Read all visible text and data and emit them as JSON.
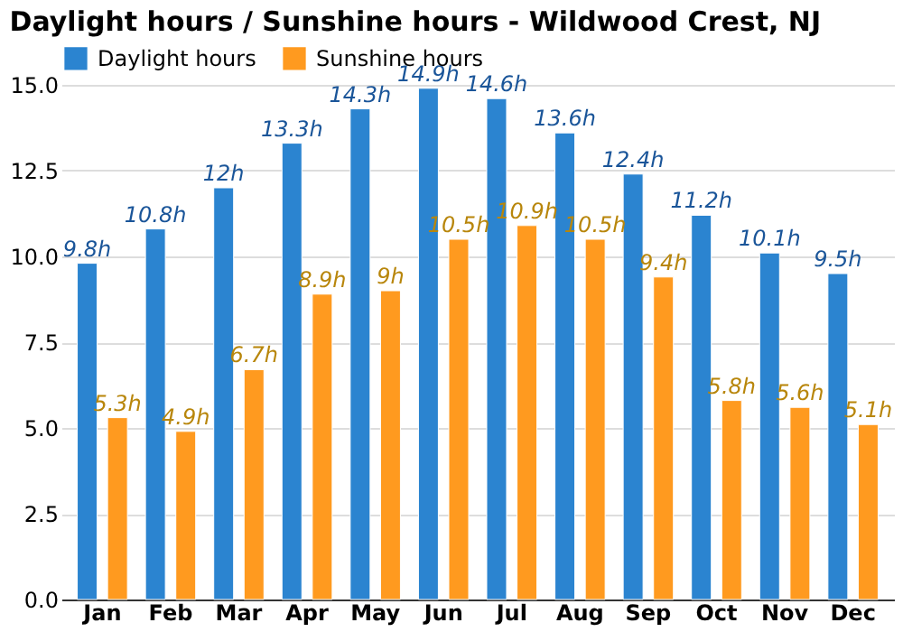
{
  "chart_data": {
    "type": "bar",
    "title": "Daylight hours / Sunshine hours - Wildwood Crest, NJ",
    "categories": [
      "Jan",
      "Feb",
      "Mar",
      "Apr",
      "May",
      "Jun",
      "Jul",
      "Aug",
      "Sep",
      "Oct",
      "Nov",
      "Dec"
    ],
    "series": [
      {
        "name": "Daylight hours",
        "color": "#2b84d0",
        "values": [
          9.8,
          10.8,
          12,
          13.3,
          14.3,
          14.9,
          14.6,
          13.6,
          12.4,
          11.2,
          10.1,
          9.5
        ],
        "value_labels": [
          "9.8h",
          "10.8h",
          "12h",
          "13.3h",
          "14.3h",
          "14.9h",
          "14.6h",
          "13.6h",
          "12.4h",
          "11.2h",
          "10.1h",
          "9.5h"
        ]
      },
      {
        "name": "Sunshine hours",
        "color": "#ff9a1f",
        "values": [
          5.3,
          4.9,
          6.7,
          8.9,
          9,
          10.5,
          10.9,
          10.5,
          9.4,
          5.8,
          5.6,
          5.1
        ],
        "value_labels": [
          "5.3h",
          "4.9h",
          "6.7h",
          "8.9h",
          "9h",
          "10.5h",
          "10.9h",
          "10.5h",
          "9.4h",
          "5.8h",
          "5.6h",
          "5.1h"
        ]
      }
    ],
    "ylim": [
      0,
      15
    ],
    "yticks": [
      {
        "value": 0,
        "label": "0.0"
      },
      {
        "value": 2.5,
        "label": "2.5"
      },
      {
        "value": 5,
        "label": "5.0"
      },
      {
        "value": 7.5,
        "label": "7.5"
      },
      {
        "value": 10,
        "label": "10.0"
      },
      {
        "value": 12.5,
        "label": "12.5"
      },
      {
        "value": 15,
        "label": "15.0"
      }
    ],
    "grid": "y",
    "legend": "top left"
  }
}
